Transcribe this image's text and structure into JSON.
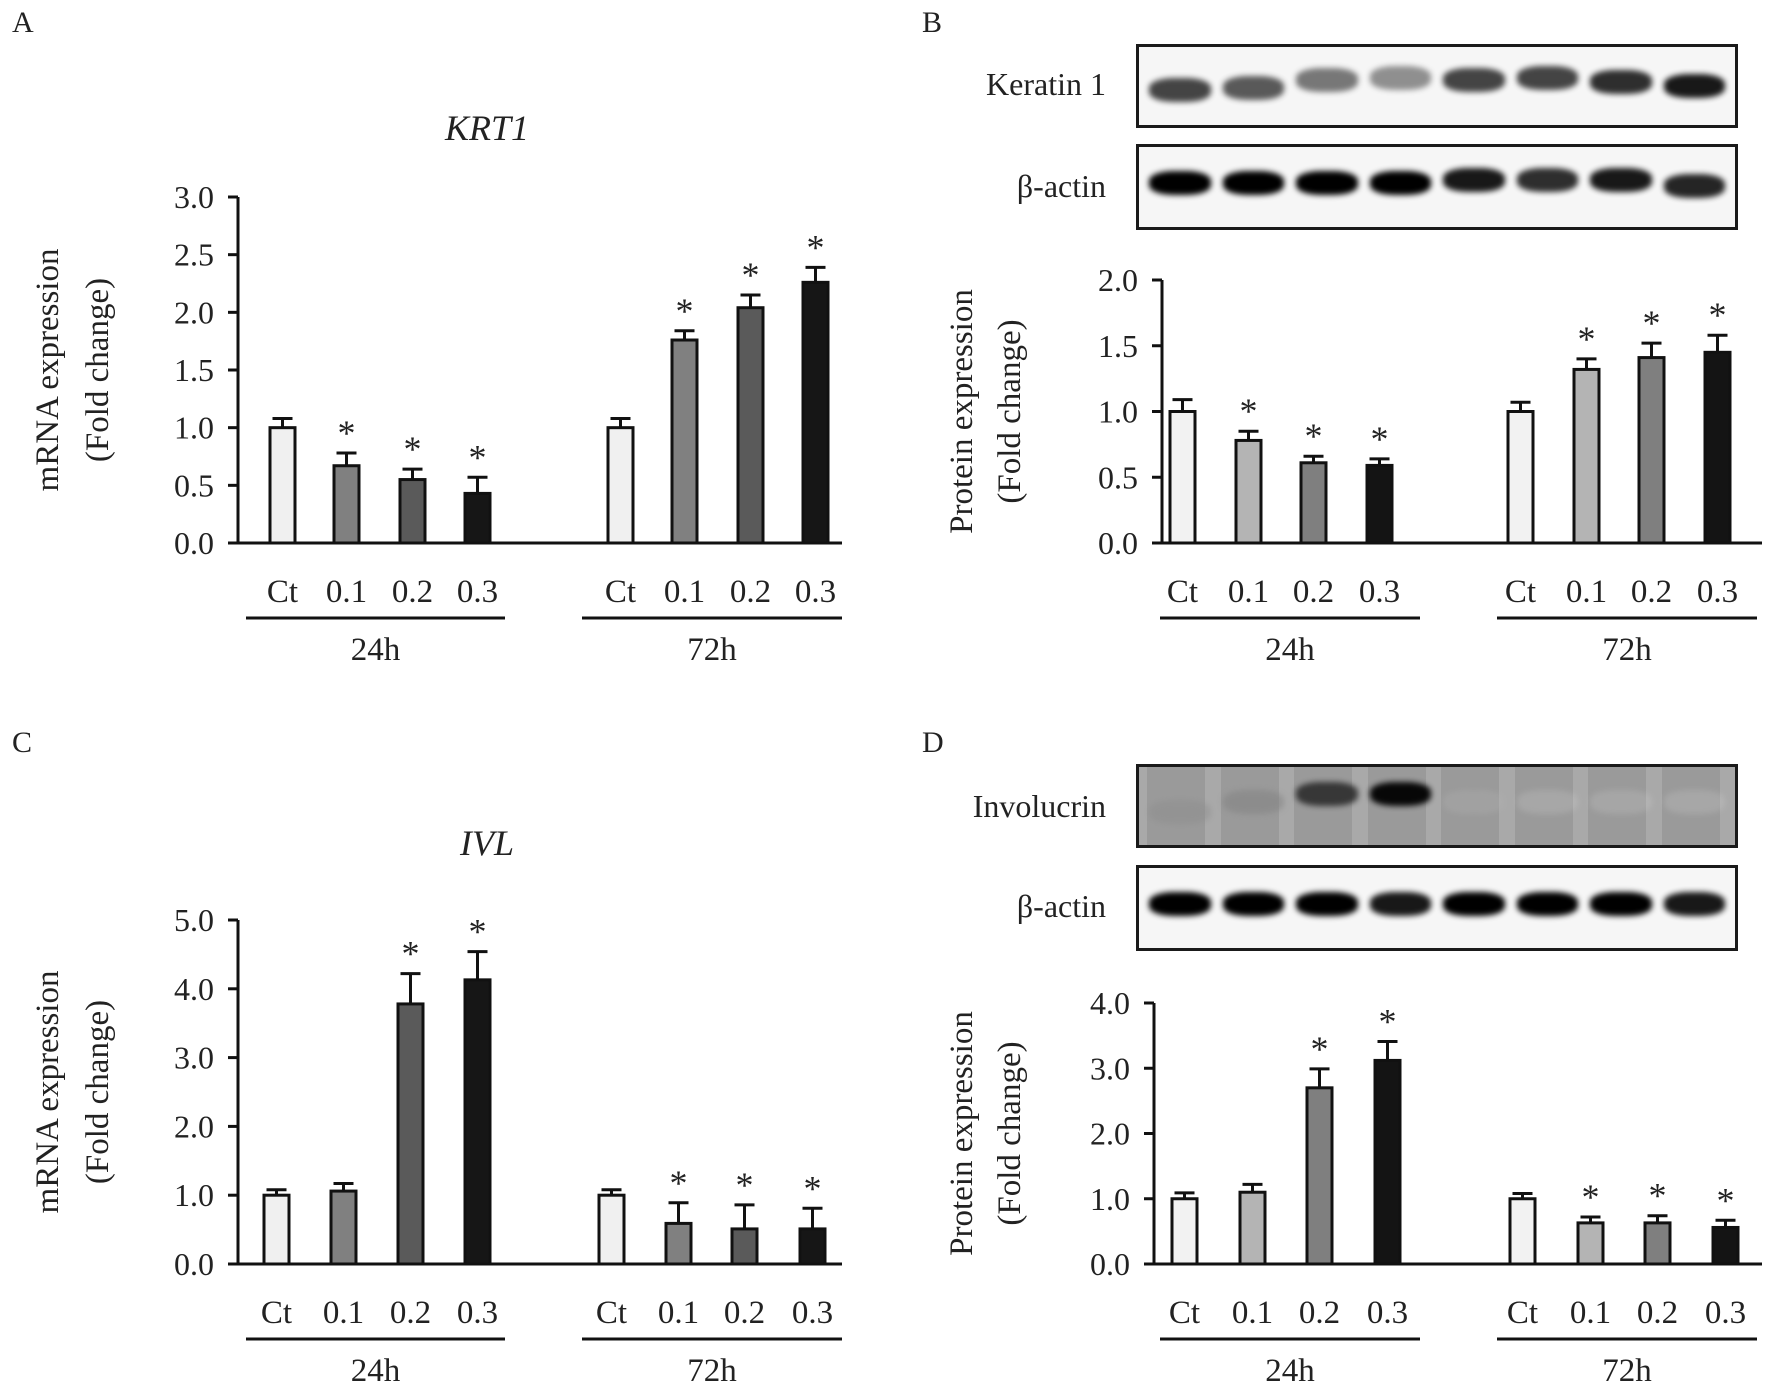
{
  "panels": {
    "A": {
      "letter": "A"
    },
    "B": {
      "letter": "B"
    },
    "C": {
      "letter": "C"
    },
    "D": {
      "letter": "D"
    }
  },
  "blots": {
    "B": {
      "rows": [
        {
          "label": "Keratin 1",
          "intensities": [
            0.85,
            0.8,
            0.72,
            0.65,
            0.85,
            0.85,
            0.9,
            0.95
          ],
          "offsets": [
            8,
            6,
            -2,
            -4,
            -2,
            -4,
            0,
            4
          ]
        },
        {
          "label": "β-actin",
          "intensities": [
            1,
            1,
            1,
            1,
            0.95,
            0.9,
            0.95,
            0.92
          ],
          "offsets": [
            0,
            0,
            0,
            0,
            -3,
            -3,
            -3,
            3
          ]
        }
      ]
    },
    "D": {
      "rows": [
        {
          "label": "Involucrin",
          "intensities": [
            0.45,
            0.5,
            0.85,
            0.98,
            0.3,
            0.06,
            0.08,
            0.06
          ],
          "offsets": [
            10,
            0,
            -8,
            -8,
            0,
            0,
            0,
            0
          ],
          "dark_bg": true
        },
        {
          "label": "β-actin",
          "intensities": [
            1,
            1,
            1,
            0.95,
            1,
            1,
            1,
            0.95
          ],
          "offsets": [
            0,
            0,
            0,
            0,
            0,
            0,
            0,
            0
          ]
        }
      ]
    }
  },
  "chart_data": [
    {
      "id": "A",
      "type": "bar",
      "title": "KRT1",
      "title_italic": true,
      "ylabel_lines": [
        "mRNA expression",
        "(Fold change)"
      ],
      "ylim": [
        0,
        3.0
      ],
      "yticks": [
        "0.0",
        "0.5",
        "1.0",
        "1.5",
        "2.0",
        "2.5",
        "3.0"
      ],
      "ytick_values": [
        0,
        0.5,
        1.0,
        1.5,
        2.0,
        2.5,
        3.0
      ],
      "groups": [
        "24h",
        "72h"
      ],
      "categories": [
        "Ct",
        "0.1",
        "0.2",
        "0.3"
      ],
      "series": [
        {
          "name": "24h",
          "values": [
            1.0,
            0.67,
            0.55,
            0.43
          ],
          "errors": [
            0.08,
            0.11,
            0.09,
            0.14
          ],
          "significant": [
            false,
            true,
            true,
            true
          ]
        },
        {
          "name": "72h",
          "values": [
            1.0,
            1.76,
            2.04,
            2.26
          ],
          "errors": [
            0.08,
            0.08,
            0.11,
            0.13
          ],
          "significant": [
            false,
            true,
            true,
            true
          ]
        }
      ],
      "fills": [
        "#f0f0f0",
        "#808080",
        "#5a5a5a",
        "#161616"
      ]
    },
    {
      "id": "B",
      "type": "bar",
      "title": "",
      "ylabel_lines": [
        "Protein expression",
        "(Fold change)"
      ],
      "ylim": [
        0,
        2.0
      ],
      "yticks": [
        "0.0",
        "0.5",
        "1.0",
        "1.5",
        "2.0"
      ],
      "ytick_values": [
        0,
        0.5,
        1.0,
        1.5,
        2.0
      ],
      "groups": [
        "24h",
        "72h"
      ],
      "categories": [
        "Ct",
        "0.1",
        "0.2",
        "0.3"
      ],
      "series": [
        {
          "name": "24h",
          "values": [
            1.0,
            0.78,
            0.61,
            0.59
          ],
          "errors": [
            0.09,
            0.07,
            0.05,
            0.05
          ],
          "significant": [
            false,
            true,
            true,
            true
          ]
        },
        {
          "name": "72h",
          "values": [
            1.0,
            1.32,
            1.41,
            1.45
          ],
          "errors": [
            0.07,
            0.08,
            0.11,
            0.13
          ],
          "significant": [
            false,
            true,
            true,
            true
          ]
        }
      ],
      "fills": [
        "#f2f2f2",
        "#b4b4b4",
        "#7f7f7f",
        "#141414"
      ]
    },
    {
      "id": "C",
      "type": "bar",
      "title": "IVL",
      "title_italic": true,
      "ylabel_lines": [
        "mRNA expression",
        "(Fold change)"
      ],
      "ylim": [
        0,
        5.0
      ],
      "yticks": [
        "0.0",
        "1.0",
        "2.0",
        "3.0",
        "4.0",
        "5.0"
      ],
      "ytick_values": [
        0,
        1,
        2,
        3,
        4,
        5
      ],
      "groups": [
        "24h",
        "72h"
      ],
      "categories": [
        "Ct",
        "0.1",
        "0.2",
        "0.3"
      ],
      "series": [
        {
          "name": "24h",
          "values": [
            1.0,
            1.06,
            3.78,
            4.13
          ],
          "errors": [
            0.08,
            0.11,
            0.44,
            0.41
          ],
          "significant": [
            false,
            false,
            true,
            true
          ]
        },
        {
          "name": "72h",
          "values": [
            1.0,
            0.59,
            0.51,
            0.51
          ],
          "errors": [
            0.08,
            0.3,
            0.35,
            0.3
          ],
          "significant": [
            false,
            true,
            true,
            true
          ]
        }
      ],
      "fills": [
        "#f0f0f0",
        "#808080",
        "#5a5a5a",
        "#161616"
      ]
    },
    {
      "id": "D",
      "type": "bar",
      "title": "",
      "ylabel_lines": [
        "Protein expression",
        "(Fold change)"
      ],
      "ylim": [
        0,
        4.0
      ],
      "yticks": [
        "0.0",
        "1.0",
        "2.0",
        "3.0",
        "4.0"
      ],
      "ytick_values": [
        0,
        1,
        2,
        3,
        4
      ],
      "groups": [
        "24h",
        "72h"
      ],
      "categories": [
        "Ct",
        "0.1",
        "0.2",
        "0.3"
      ],
      "series": [
        {
          "name": "24h",
          "values": [
            1.0,
            1.1,
            2.7,
            3.12
          ],
          "errors": [
            0.09,
            0.12,
            0.29,
            0.29
          ],
          "significant": [
            false,
            false,
            true,
            true
          ]
        },
        {
          "name": "72h",
          "values": [
            1.0,
            0.63,
            0.63,
            0.56
          ],
          "errors": [
            0.08,
            0.09,
            0.11,
            0.11
          ],
          "significant": [
            false,
            true,
            true,
            true
          ]
        }
      ],
      "fills": [
        "#f2f2f2",
        "#b4b4b4",
        "#7f7f7f",
        "#141414"
      ]
    }
  ]
}
